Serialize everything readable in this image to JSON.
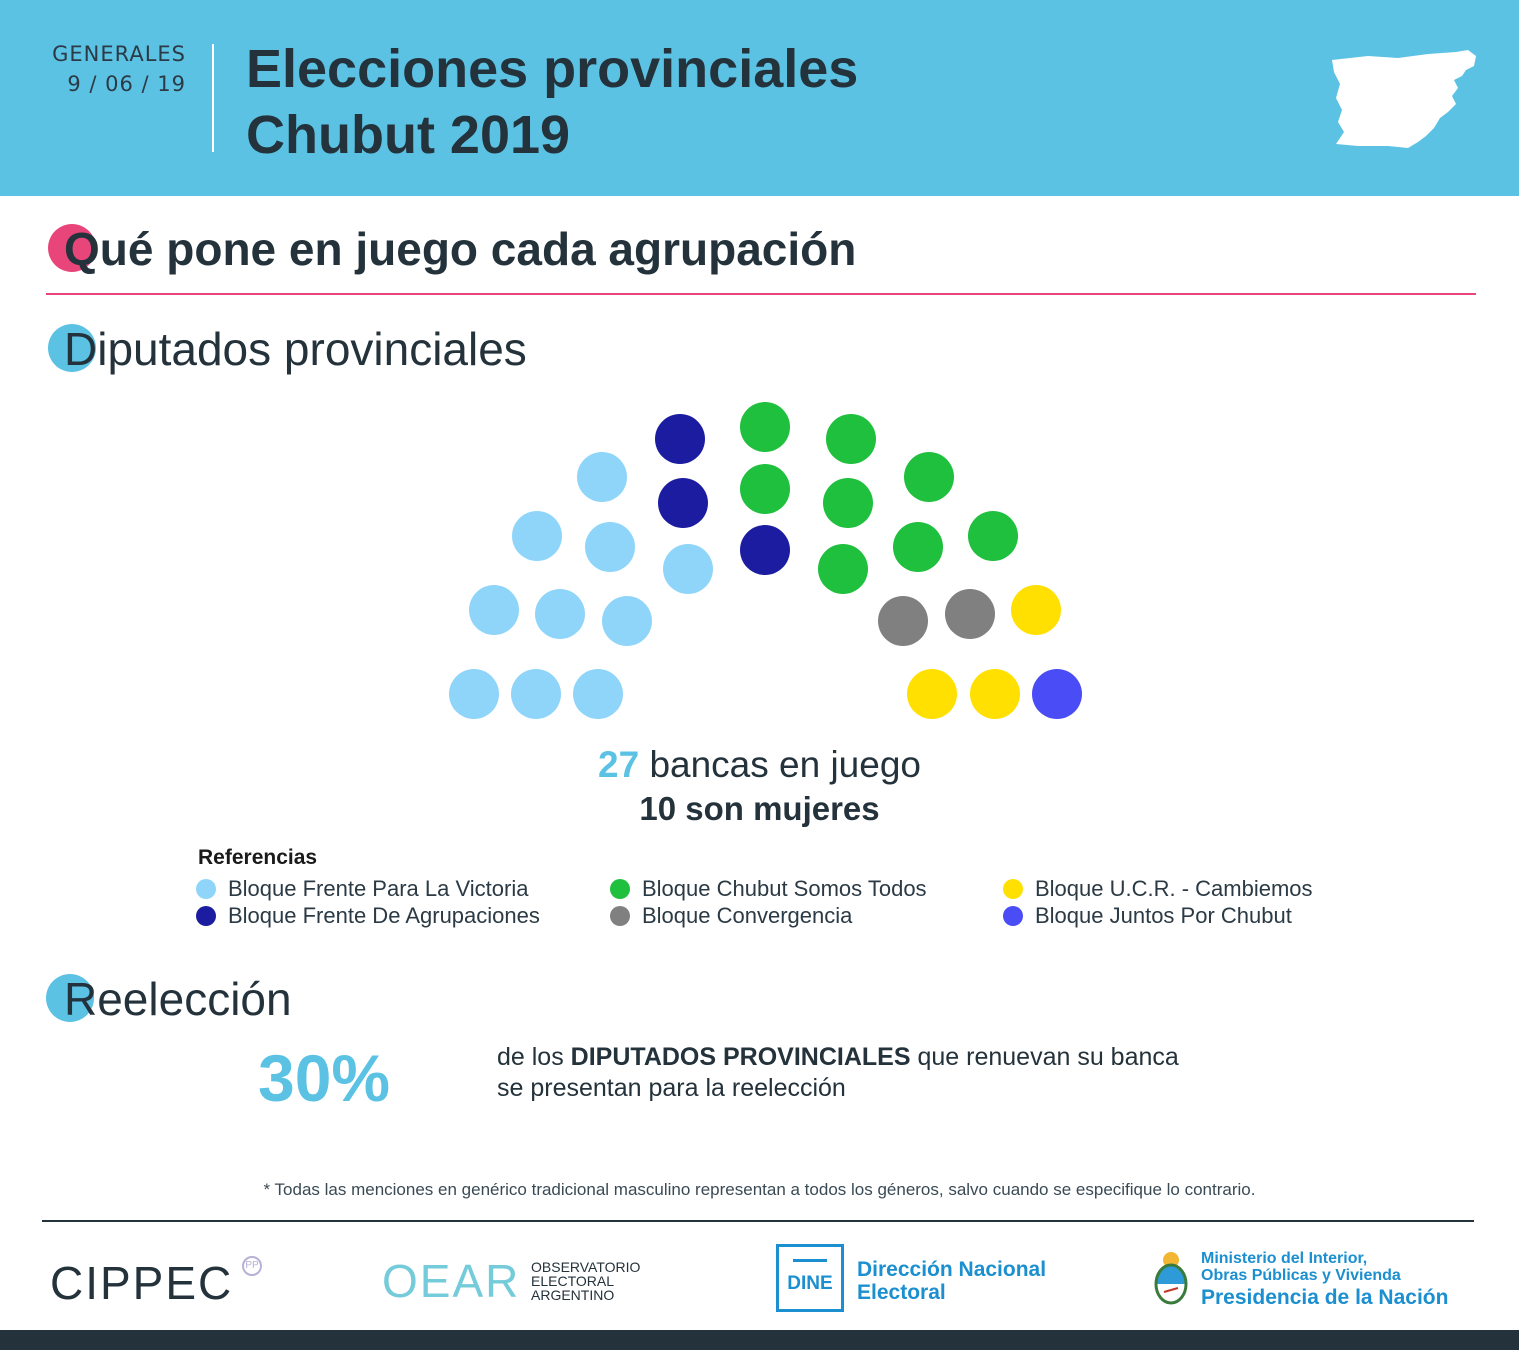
{
  "header": {
    "label": "GENERALES",
    "date": "9 / 06 / 19",
    "title_line1": "Elecciones provinciales",
    "title_line2": "Chubut 2019",
    "colors": {
      "background": "#5bc2e4",
      "text": "#24323b"
    }
  },
  "section_main": {
    "title": "Qué pone en juego cada agrupación",
    "accent": "#e8467b"
  },
  "section_diputados": {
    "title": "Diputados provinciales",
    "accent": "#5bc2e4"
  },
  "chamber": {
    "total_seats": "27",
    "bancas_suffix": "bancas en juego",
    "women_line": "10 son mujeres",
    "seat_order": [
      "FPV",
      "FPV",
      "FPV",
      "FPV",
      "FPV",
      "FPV",
      "FPV",
      "FPV",
      "FPV",
      "FPV",
      "FDA",
      "FDA",
      "FDA",
      "CST",
      "CST",
      "CST",
      "CST",
      "CST",
      "CST",
      "CST",
      "CST",
      "CONV",
      "CONV",
      "UCR",
      "UCR",
      "UCR",
      "JPC"
    ],
    "blocs": {
      "FPV": {
        "name": "Bloque Frente Para La Victoria",
        "color": "#8fd5fa",
        "seats": 10
      },
      "FDA": {
        "name": "Bloque Frente De Agrupaciones",
        "color": "#1c1ca0",
        "seats": 3
      },
      "CST": {
        "name": "Bloque Chubut Somos Todos",
        "color": "#1ec03d",
        "seats": 8
      },
      "CONV": {
        "name": "Bloque Convergencia",
        "color": "#808080",
        "seats": 2
      },
      "UCR": {
        "name": "Bloque U.C.R. - Cambiemos",
        "color": "#ffe000",
        "seats": 3
      },
      "JPC": {
        "name": "Bloque Juntos Por Chubut",
        "color": "#4a4cf5",
        "seats": 1
      }
    }
  },
  "legend": {
    "title": "Referencias",
    "order": [
      "FPV",
      "FDA",
      "CST",
      "CONV",
      "UCR",
      "JPC"
    ]
  },
  "section_reeleccion": {
    "title": "Reelección",
    "accent": "#5bc2e4",
    "percent": "30%",
    "text_pre": "de los",
    "text_bold": "DIPUTADOS PROVINCIALES",
    "text_post": "que renuevan su banca",
    "text_line2": "se presentan para la reelección"
  },
  "footnote": "* Todas las menciones en genérico tradicional masculino representan a todos los géneros, salvo cuando se especifique lo contrario.",
  "logos": {
    "cippec": "CIPPEC",
    "cippec_badge": "PP",
    "oear": "OEAR",
    "oear_sub": [
      "OBSERVATORIO",
      "ELECTORAL",
      "ARGENTINO"
    ],
    "dine": "DINE",
    "dne": [
      "Dirección Nacional",
      "Electoral"
    ],
    "ministerio": [
      "Ministerio del Interior,",
      "Obras Públicas y Vivienda"
    ],
    "presidencia": "Presidencia de la Nación"
  }
}
